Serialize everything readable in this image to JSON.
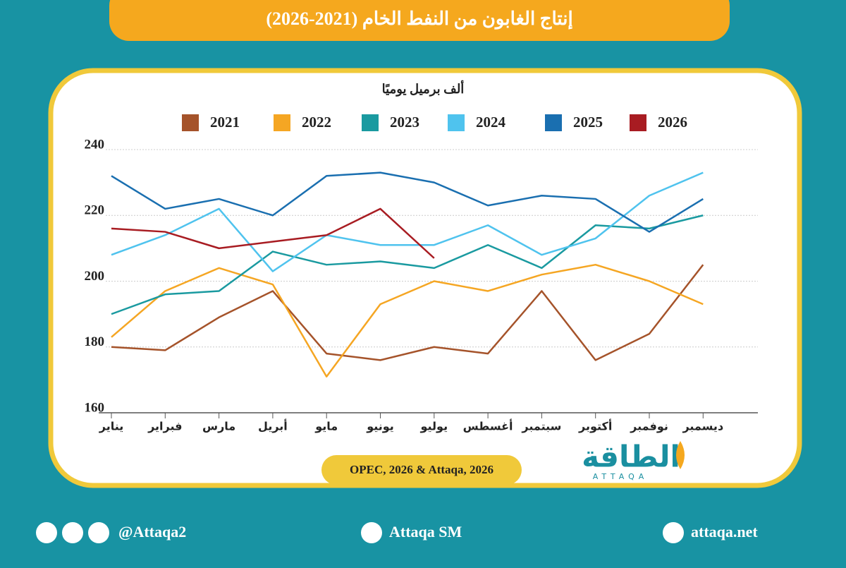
{
  "chart_data": {
    "type": "line",
    "title": "إنتاج الغابون من النفط الخام (2021-2026)",
    "y_axis_label": "ألف برميل يوميًا",
    "source": "OPEC, 2026 & Attaqa, 2026",
    "categories": [
      "يناير",
      "فبراير",
      "مارس",
      "أبريل",
      "مايو",
      "يونيو",
      "يوليو",
      "أغسطس",
      "سبتمبر",
      "أكتوبر",
      "نوفمبر",
      "ديسمبر"
    ],
    "series": [
      {
        "name": "2021",
        "color": "#a5532a",
        "values": [
          180,
          179,
          189,
          197,
          178,
          176,
          180,
          178,
          197,
          176,
          184,
          205
        ]
      },
      {
        "name": "2022",
        "color": "#f5a623",
        "values": [
          183,
          197,
          204,
          199,
          171,
          193,
          200,
          197,
          202,
          205,
          200,
          193
        ]
      },
      {
        "name": "2023",
        "color": "#1a9aa0",
        "values": [
          190,
          196,
          197,
          209,
          205,
          206,
          204,
          211,
          204,
          217,
          216,
          220
        ]
      },
      {
        "name": "2024",
        "color": "#4fc3ee",
        "values": [
          208,
          214,
          222,
          203,
          214,
          211,
          211,
          217,
          208,
          213,
          226,
          233
        ]
      },
      {
        "name": "2025",
        "color": "#1a6fb0",
        "values": [
          232,
          222,
          225,
          220,
          232,
          233,
          230,
          223,
          226,
          225,
          215,
          225
        ]
      },
      {
        "name": "2026",
        "color": "#a81c22",
        "values": [
          216,
          215,
          210,
          212,
          214,
          222,
          207,
          null,
          null,
          null,
          null,
          null
        ]
      }
    ],
    "ylim": [
      160,
      240
    ],
    "yticks": [
      160,
      180,
      200,
      220,
      240
    ],
    "grid": true,
    "legend_position": "top"
  },
  "branding": {
    "logo": "الطاقة",
    "logo_latin": "ATTAQA"
  },
  "footer": {
    "social": "@Attaqa2",
    "youtube": "Attaqa SM",
    "website": "attaqa.net"
  }
}
